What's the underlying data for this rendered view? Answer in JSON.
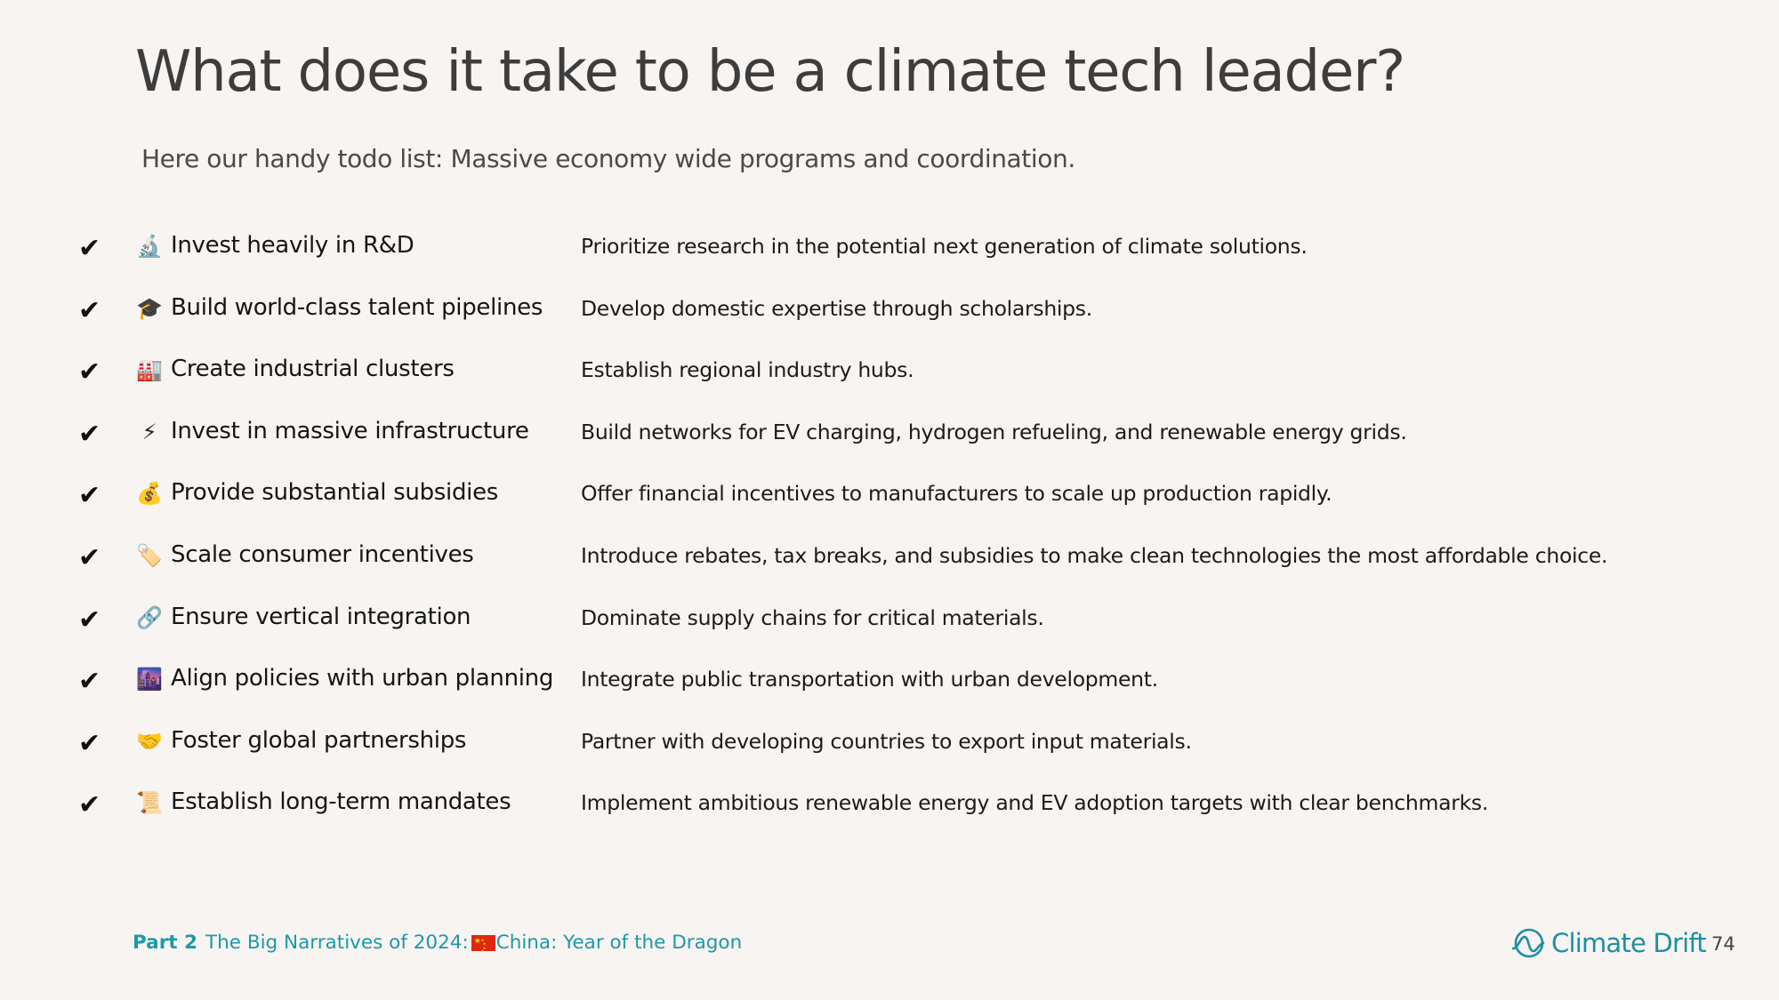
{
  "title": "What does it take to be a climate tech leader?",
  "subtitle": "Here our handy todo list: Massive economy wide programs and coordination.",
  "check_symbol": "✔",
  "items": [
    {
      "emoji": "🔬",
      "icon": "microscope-icon",
      "label": "Invest heavily in R&D",
      "description": "Prioritize research in the potential next generation of climate solutions."
    },
    {
      "emoji": "🎓",
      "icon": "graduation-cap-icon",
      "label": "Build world-class talent pipelines",
      "description": "Develop domestic expertise through scholarships."
    },
    {
      "emoji": "🏭",
      "icon": "factory-icon",
      "label": "Create industrial clusters",
      "description": "Establish regional industry hubs."
    },
    {
      "emoji": "⚡",
      "icon": "lightning-icon",
      "label": "Invest in massive infrastructure",
      "description": "Build networks for EV charging, hydrogen refueling, and renewable energy grids."
    },
    {
      "emoji": "💰",
      "icon": "money-bag-icon",
      "label": "Provide substantial subsidies",
      "description": "Offer financial incentives to manufacturers to scale up production rapidly."
    },
    {
      "emoji": "🏷️",
      "icon": "price-tag-icon",
      "label": "Scale consumer incentives",
      "description": "Introduce rebates, tax breaks, and subsidies to make clean technologies the most affordable choice."
    },
    {
      "emoji": "🔗",
      "icon": "link-icon",
      "label": "Ensure vertical integration",
      "description": "Dominate supply chains for critical materials."
    },
    {
      "emoji": "🌆",
      "icon": "cityscape-icon",
      "label": "Align policies with urban planning",
      "description": "Integrate public transportation with urban development."
    },
    {
      "emoji": "🤝",
      "icon": "handshake-icon",
      "label": "Foster global partnerships",
      "description": "Partner with developing countries to export input materials."
    },
    {
      "emoji": "📜",
      "icon": "scroll-icon",
      "label": "Establish long-term mandates",
      "description": "Implement ambitious renewable energy and EV adoption targets with clear benchmarks."
    }
  ],
  "footer": {
    "part_label": "Part 2",
    "section_prefix": "The Big Narratives of 2024:",
    "section_suffix": "China: Year of the Dragon",
    "flag_icon": "china-flag-icon",
    "brand": "Climate Drift",
    "page_number": "74"
  },
  "colors": {
    "background": "#f7f4f1",
    "accent": "#1d9aa7",
    "brand": "#1d8fa6"
  }
}
